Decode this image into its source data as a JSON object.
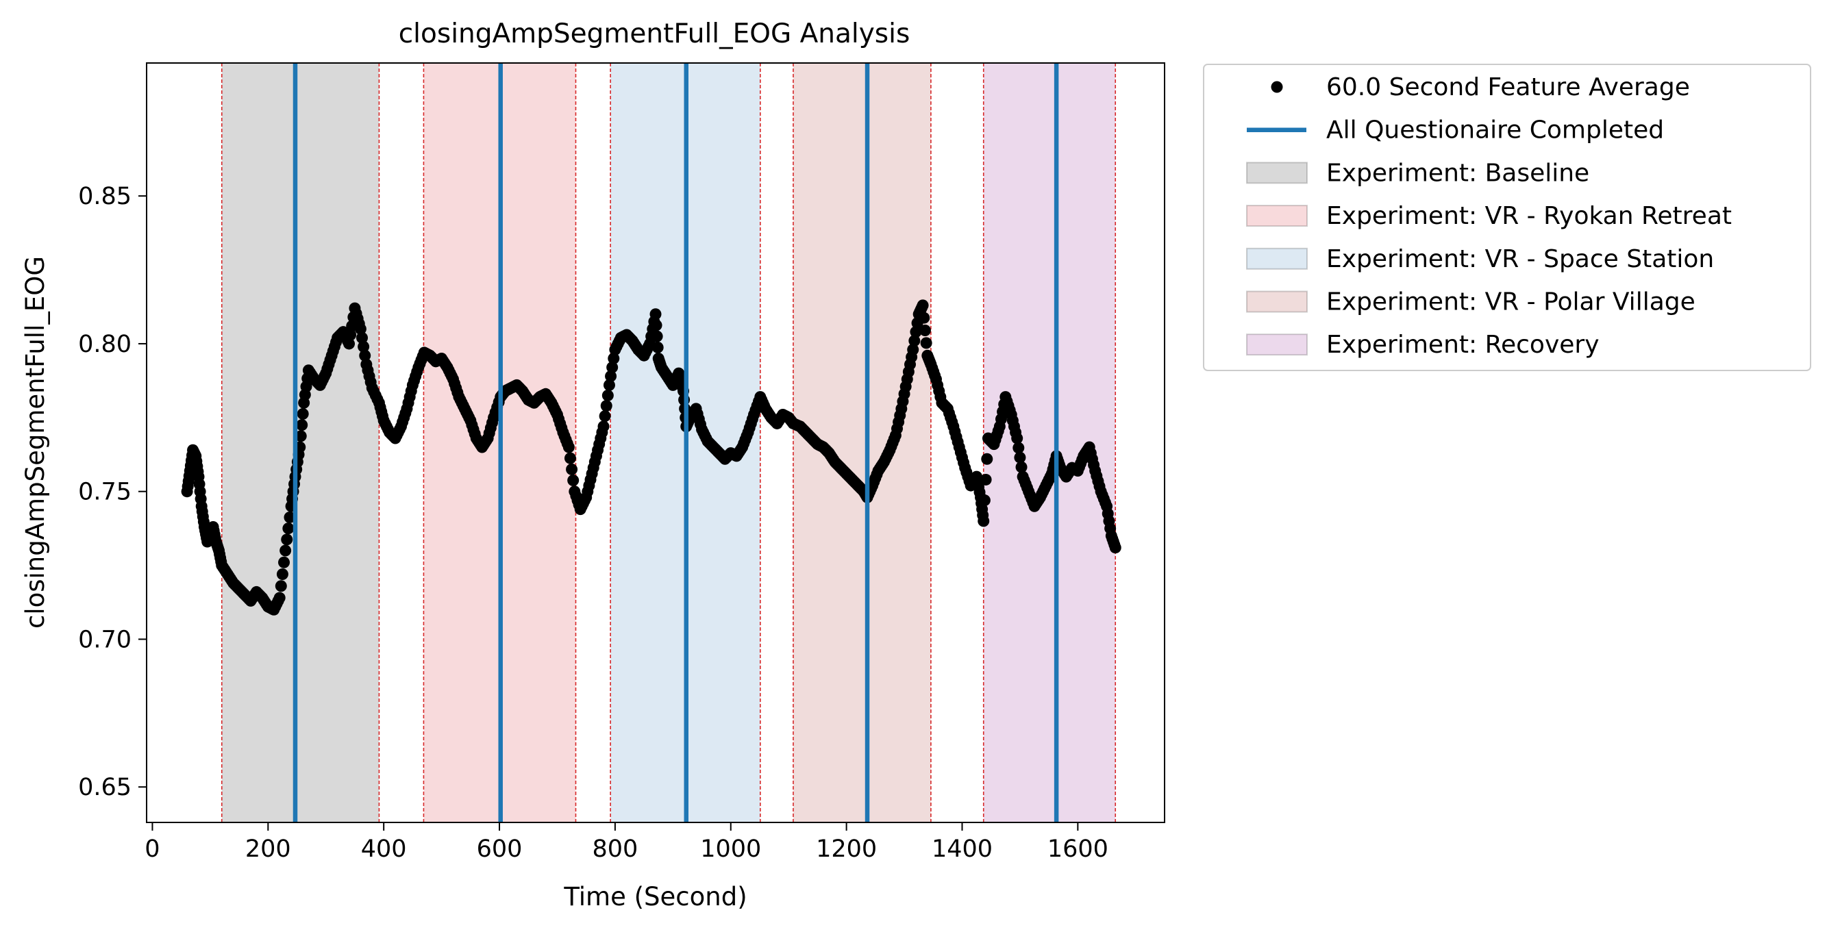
{
  "chart_data": {
    "type": "scatter",
    "title": "closingAmpSegmentFull_EOG Analysis",
    "xlabel": "Time (Second)",
    "ylabel": "closingAmpSegmentFull_EOG",
    "xlim": [
      -10,
      1750
    ],
    "ylim": [
      0.638,
      0.895
    ],
    "x_ticks": [
      0,
      200,
      400,
      600,
      800,
      1000,
      1200,
      1400,
      1600
    ],
    "x_tick_labels": [
      "0",
      "200",
      "400",
      "600",
      "800",
      "1000",
      "1200",
      "1400",
      "1600"
    ],
    "y_ticks": [
      0.65,
      0.7,
      0.75,
      0.8,
      0.85
    ],
    "y_tick_labels": [
      "0.65",
      "0.70",
      "0.75",
      "0.80",
      "0.85"
    ],
    "grid": false,
    "legend_position": "outside-right-top",
    "legend": [
      {
        "label": "60.0 Second Feature Average",
        "kind": "marker",
        "color": "#000000"
      },
      {
        "label": "All Questionaire Completed",
        "kind": "line",
        "color": "#1f77b4"
      },
      {
        "label": "Experiment: Baseline",
        "kind": "patch",
        "color": "#d9d9d9"
      },
      {
        "label": "Experiment: VR - Ryokan Retreat",
        "kind": "patch",
        "color": "#f8dadc"
      },
      {
        "label": "Experiment: VR - Space Station",
        "kind": "patch",
        "color": "#dde9f3"
      },
      {
        "label": "Experiment: VR - Polar Village",
        "kind": "patch",
        "color": "#f0dcdb"
      },
      {
        "label": "Experiment: Recovery",
        "kind": "patch",
        "color": "#ecd9ec"
      }
    ],
    "regions": [
      {
        "name": "Baseline",
        "start": 120,
        "end": 392,
        "color": "#d9d9d9"
      },
      {
        "name": "VR - Ryokan Retreat",
        "start": 469,
        "end": 732,
        "color": "#f8dadc"
      },
      {
        "name": "VR - Space Station",
        "start": 792,
        "end": 1051,
        "color": "#dde9f3"
      },
      {
        "name": "VR - Polar Village",
        "start": 1108,
        "end": 1346,
        "color": "#f0dcdb"
      },
      {
        "name": "Recovery",
        "start": 1437,
        "end": 1665,
        "color": "#ecd9ec"
      }
    ],
    "boundary_line_color": "#d62728",
    "questionnaire_completed_x": [
      247,
      602,
      923,
      1236,
      1563
    ],
    "questionnaire_line_color": "#1f77b4",
    "series": [
      {
        "name": "60.0 Second Feature Average",
        "color": "#000000",
        "points": [
          [
            60,
            0.75
          ],
          [
            65,
            0.757
          ],
          [
            70,
            0.764
          ],
          [
            75,
            0.762
          ],
          [
            80,
            0.755
          ],
          [
            85,
            0.745
          ],
          [
            90,
            0.738
          ],
          [
            95,
            0.733
          ],
          [
            100,
            0.736
          ],
          [
            105,
            0.738
          ],
          [
            110,
            0.733
          ],
          [
            115,
            0.73
          ],
          [
            120,
            0.725
          ],
          [
            130,
            0.722
          ],
          [
            140,
            0.719
          ],
          [
            150,
            0.717
          ],
          [
            160,
            0.715
          ],
          [
            170,
            0.713
          ],
          [
            180,
            0.716
          ],
          [
            190,
            0.714
          ],
          [
            200,
            0.711
          ],
          [
            210,
            0.71
          ],
          [
            220,
            0.714
          ],
          [
            230,
            0.73
          ],
          [
            240,
            0.745
          ],
          [
            247,
            0.755
          ],
          [
            255,
            0.765
          ],
          [
            262,
            0.78
          ],
          [
            270,
            0.791
          ],
          [
            280,
            0.788
          ],
          [
            290,
            0.786
          ],
          [
            300,
            0.79
          ],
          [
            310,
            0.796
          ],
          [
            320,
            0.802
          ],
          [
            330,
            0.804
          ],
          [
            340,
            0.8
          ],
          [
            350,
            0.812
          ],
          [
            360,
            0.805
          ],
          [
            370,
            0.793
          ],
          [
            380,
            0.785
          ],
          [
            392,
            0.78
          ],
          [
            400,
            0.774
          ],
          [
            410,
            0.77
          ],
          [
            420,
            0.768
          ],
          [
            430,
            0.772
          ],
          [
            440,
            0.778
          ],
          [
            450,
            0.786
          ],
          [
            460,
            0.792
          ],
          [
            470,
            0.797
          ],
          [
            480,
            0.796
          ],
          [
            490,
            0.794
          ],
          [
            500,
            0.795
          ],
          [
            510,
            0.792
          ],
          [
            520,
            0.788
          ],
          [
            530,
            0.782
          ],
          [
            540,
            0.778
          ],
          [
            550,
            0.774
          ],
          [
            560,
            0.768
          ],
          [
            570,
            0.765
          ],
          [
            580,
            0.768
          ],
          [
            590,
            0.775
          ],
          [
            602,
            0.782
          ],
          [
            610,
            0.784
          ],
          [
            620,
            0.785
          ],
          [
            630,
            0.786
          ],
          [
            640,
            0.784
          ],
          [
            650,
            0.781
          ],
          [
            660,
            0.78
          ],
          [
            670,
            0.782
          ],
          [
            680,
            0.783
          ],
          [
            690,
            0.78
          ],
          [
            700,
            0.776
          ],
          [
            710,
            0.77
          ],
          [
            720,
            0.765
          ],
          [
            730,
            0.75
          ],
          [
            740,
            0.744
          ],
          [
            750,
            0.748
          ],
          [
            760,
            0.756
          ],
          [
            770,
            0.764
          ],
          [
            780,
            0.772
          ],
          [
            790,
            0.786
          ],
          [
            800,
            0.798
          ],
          [
            810,
            0.802
          ],
          [
            820,
            0.803
          ],
          [
            830,
            0.801
          ],
          [
            840,
            0.798
          ],
          [
            850,
            0.796
          ],
          [
            860,
            0.8
          ],
          [
            870,
            0.81
          ],
          [
            875,
            0.795
          ],
          [
            880,
            0.792
          ],
          [
            890,
            0.789
          ],
          [
            900,
            0.786
          ],
          [
            910,
            0.79
          ],
          [
            918,
            0.784
          ],
          [
            923,
            0.772
          ],
          [
            930,
            0.775
          ],
          [
            940,
            0.778
          ],
          [
            950,
            0.771
          ],
          [
            960,
            0.767
          ],
          [
            970,
            0.765
          ],
          [
            980,
            0.763
          ],
          [
            990,
            0.761
          ],
          [
            1000,
            0.763
          ],
          [
            1010,
            0.762
          ],
          [
            1020,
            0.765
          ],
          [
            1030,
            0.77
          ],
          [
            1040,
            0.776
          ],
          [
            1051,
            0.782
          ],
          [
            1060,
            0.778
          ],
          [
            1070,
            0.775
          ],
          [
            1080,
            0.773
          ],
          [
            1090,
            0.776
          ],
          [
            1100,
            0.775
          ],
          [
            1108,
            0.773
          ],
          [
            1120,
            0.772
          ],
          [
            1130,
            0.77
          ],
          [
            1140,
            0.768
          ],
          [
            1150,
            0.766
          ],
          [
            1160,
            0.765
          ],
          [
            1170,
            0.763
          ],
          [
            1180,
            0.76
          ],
          [
            1190,
            0.758
          ],
          [
            1200,
            0.756
          ],
          [
            1210,
            0.754
          ],
          [
            1220,
            0.752
          ],
          [
            1230,
            0.75
          ],
          [
            1236,
            0.748
          ],
          [
            1245,
            0.752
          ],
          [
            1255,
            0.757
          ],
          [
            1265,
            0.76
          ],
          [
            1275,
            0.764
          ],
          [
            1285,
            0.769
          ],
          [
            1295,
            0.778
          ],
          [
            1305,
            0.788
          ],
          [
            1315,
            0.798
          ],
          [
            1325,
            0.81
          ],
          [
            1332,
            0.813
          ],
          [
            1340,
            0.796
          ],
          [
            1346,
            0.793
          ],
          [
            1355,
            0.788
          ],
          [
            1365,
            0.78
          ],
          [
            1375,
            0.778
          ],
          [
            1385,
            0.772
          ],
          [
            1395,
            0.765
          ],
          [
            1405,
            0.758
          ],
          [
            1415,
            0.752
          ],
          [
            1425,
            0.755
          ],
          [
            1432,
            0.748
          ],
          [
            1437,
            0.74
          ],
          [
            1445,
            0.768
          ],
          [
            1455,
            0.766
          ],
          [
            1465,
            0.772
          ],
          [
            1475,
            0.782
          ],
          [
            1485,
            0.776
          ],
          [
            1495,
            0.768
          ],
          [
            1505,
            0.755
          ],
          [
            1515,
            0.75
          ],
          [
            1525,
            0.745
          ],
          [
            1535,
            0.748
          ],
          [
            1545,
            0.752
          ],
          [
            1555,
            0.756
          ],
          [
            1563,
            0.762
          ],
          [
            1570,
            0.758
          ],
          [
            1580,
            0.755
          ],
          [
            1590,
            0.758
          ],
          [
            1600,
            0.757
          ],
          [
            1610,
            0.762
          ],
          [
            1620,
            0.765
          ],
          [
            1630,
            0.757
          ],
          [
            1640,
            0.75
          ],
          [
            1650,
            0.745
          ],
          [
            1658,
            0.735
          ],
          [
            1665,
            0.731
          ]
        ]
      }
    ]
  }
}
